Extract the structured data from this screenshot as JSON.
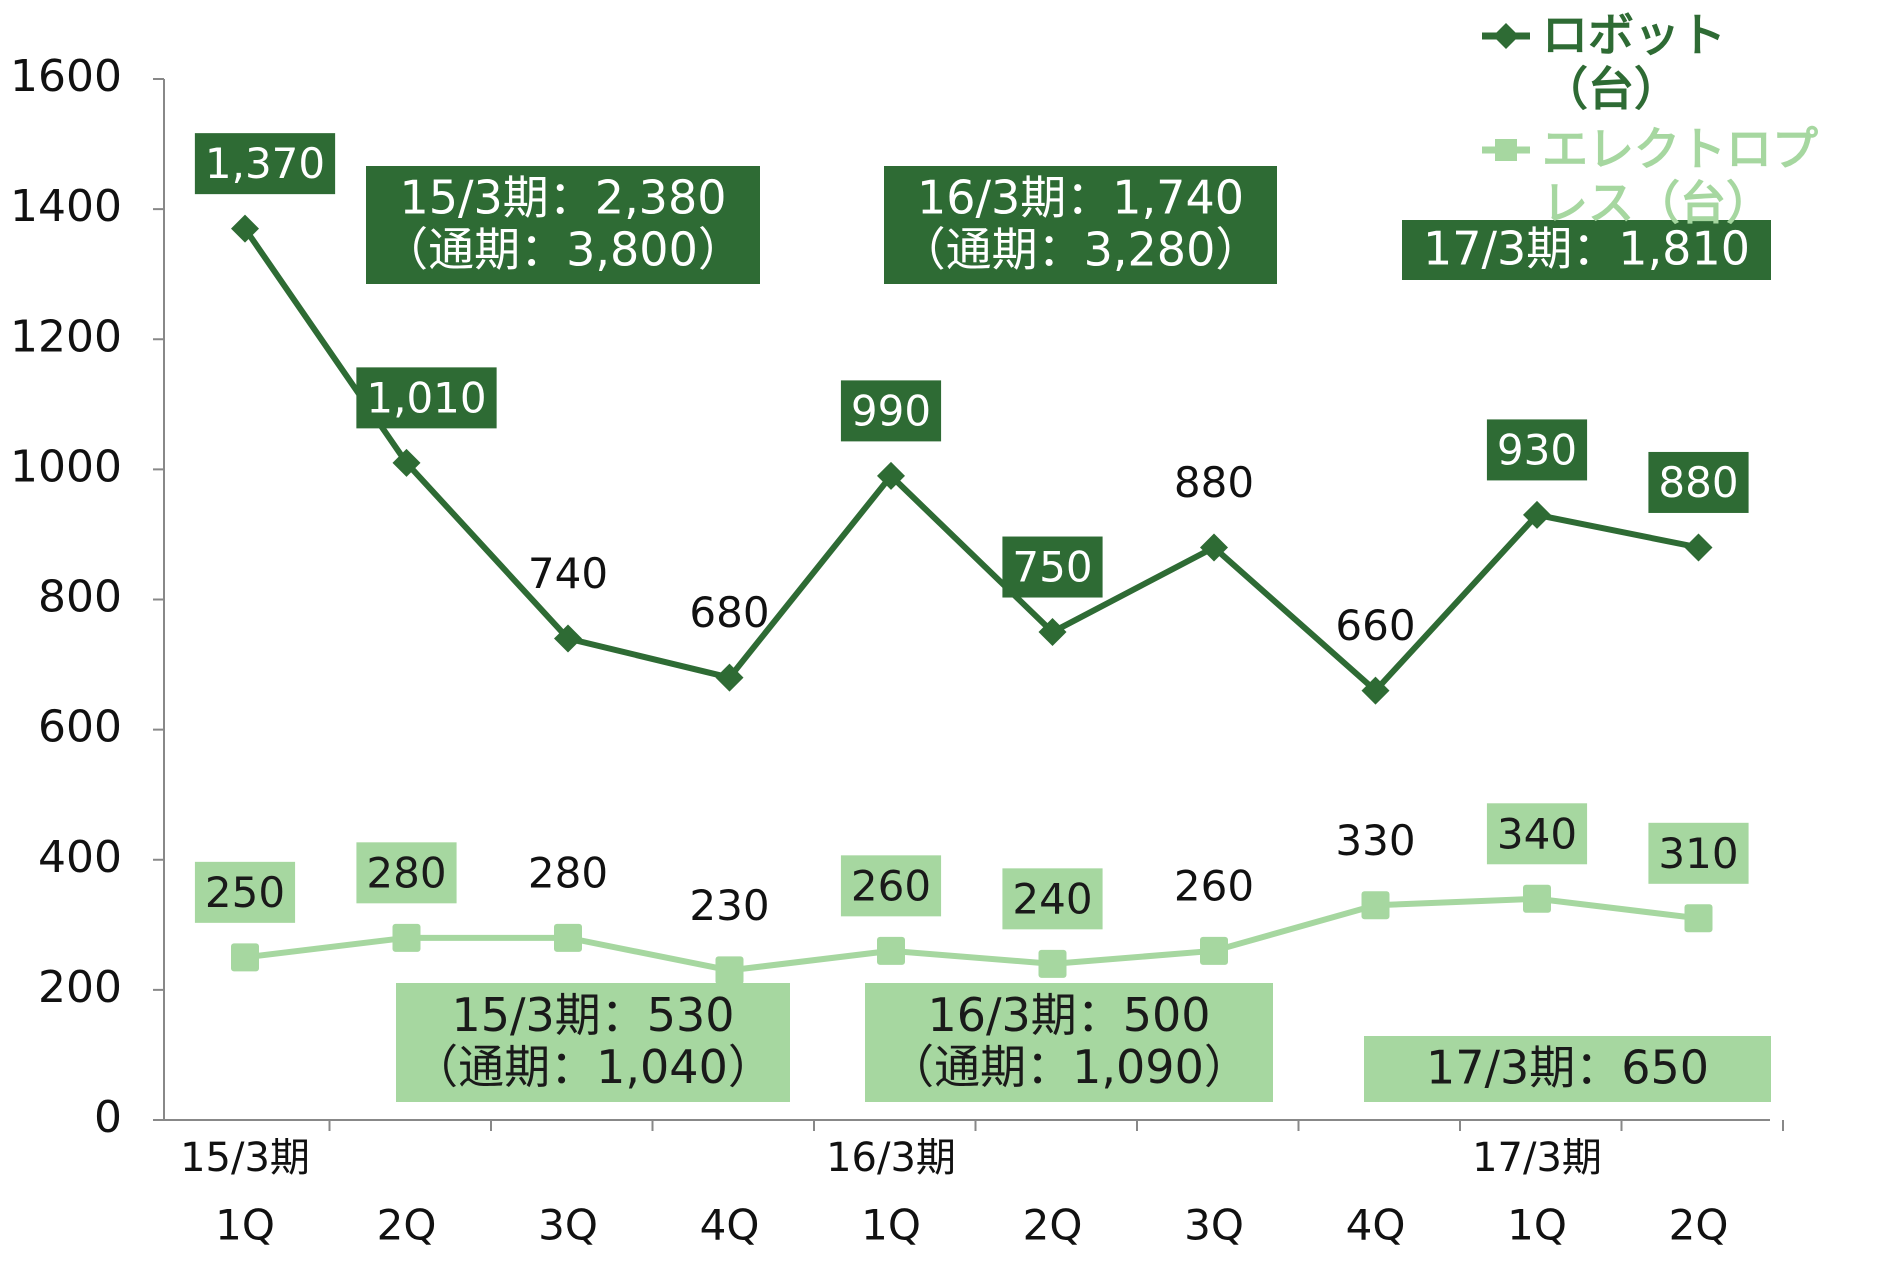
{
  "chart_data": {
    "type": "line",
    "categories": [
      "1Q",
      "2Q",
      "3Q",
      "4Q",
      "1Q",
      "2Q",
      "3Q",
      "4Q",
      "1Q",
      "2Q"
    ],
    "category_groups": [
      "15/3期",
      null,
      null,
      null,
      "16/3期",
      null,
      null,
      null,
      "17/3期",
      null
    ],
    "series": [
      {
        "name": "ロボット（台）",
        "color": "#2e6b34",
        "marker": "diamond",
        "values": [
          1370,
          1010,
          740,
          680,
          990,
          750,
          880,
          660,
          930,
          880
        ],
        "value_labels": [
          "1,370",
          "1,010",
          "740",
          "680",
          "990",
          "750",
          "880",
          "660",
          "930",
          "880"
        ],
        "label_boxed": [
          true,
          true,
          false,
          false,
          true,
          true,
          false,
          false,
          true,
          true
        ],
        "label_box_color": "#2e6b34",
        "label_box_text_color": "#ffffff"
      },
      {
        "name": "エレクトロプレス（台）",
        "color": "#a6d7a0",
        "marker": "square",
        "values": [
          250,
          280,
          280,
          230,
          260,
          240,
          260,
          330,
          340,
          310
        ],
        "label_boxed": [
          true,
          true,
          false,
          false,
          true,
          true,
          false,
          false,
          true,
          true
        ],
        "label_box_color": "#a6d7a0",
        "label_box_text_color": "#1a1a1a"
      }
    ],
    "annotations": [
      {
        "lines": [
          "15/3期：2,380",
          "（通期：3,800）"
        ],
        "color": "#2e6b34",
        "text_color": "#ffffff"
      },
      {
        "lines": [
          "16/3期：1,740",
          "（通期：3,280）"
        ],
        "color": "#2e6b34",
        "text_color": "#ffffff"
      },
      {
        "lines": [
          "17/3期：1,810"
        ],
        "color": "#2e6b34",
        "text_color": "#ffffff"
      },
      {
        "lines": [
          "15/3期：530",
          "（通期：1,040）"
        ],
        "color": "#a6d7a0",
        "text_color": "#1a1a1a"
      },
      {
        "lines": [
          "16/3期：500",
          "（通期：1,090）"
        ],
        "color": "#a6d7a0",
        "text_color": "#1a1a1a"
      },
      {
        "lines": [
          "17/3期：650"
        ],
        "color": "#a6d7a0",
        "text_color": "#1a1a1a"
      }
    ],
    "ylim": [
      0,
      1600
    ],
    "yticks": [
      0,
      200,
      400,
      600,
      800,
      1000,
      1200,
      1400,
      1600
    ],
    "grid": false,
    "legend": "top-right"
  }
}
